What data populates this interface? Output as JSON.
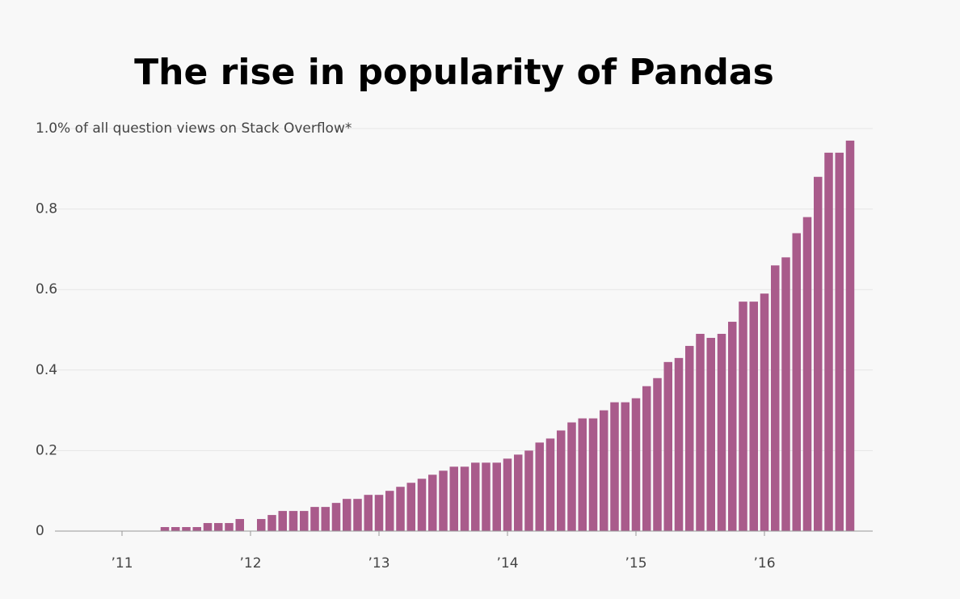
{
  "chart_data": {
    "type": "bar",
    "title": "The rise in popularity of Pandas",
    "categories": [
      "’11",
      null,
      null,
      null,
      null,
      null,
      null,
      null,
      null,
      null,
      null,
      null,
      "’12",
      null,
      null,
      null,
      null,
      null,
      null,
      null,
      null,
      null,
      null,
      null,
      "’13",
      null,
      null,
      null,
      null,
      null,
      null,
      null,
      null,
      null,
      null,
      null,
      "’14",
      null,
      null,
      null,
      null,
      null,
      null,
      null,
      null,
      null,
      null,
      null,
      "’15",
      null,
      null,
      null,
      null,
      null,
      null,
      null,
      null,
      null,
      null,
      null,
      "’16",
      null,
      null,
      null,
      null,
      null,
      null,
      null,
      null
    ],
    "values": [
      0,
      0,
      0,
      0,
      0.01,
      0.01,
      0.01,
      0.01,
      0.02,
      0.02,
      0.02,
      0.03,
      0,
      0.03,
      0.04,
      0.05,
      0.05,
      0.05,
      0.06,
      0.06,
      0.07,
      0.08,
      0.08,
      0.09,
      0.09,
      0.1,
      0.11,
      0.12,
      0.13,
      0.14,
      0.15,
      0.16,
      0.16,
      0.17,
      0.17,
      0.17,
      0.18,
      0.19,
      0.2,
      0.22,
      0.23,
      0.25,
      0.27,
      0.28,
      0.28,
      0.3,
      0.32,
      0.32,
      0.33,
      0.36,
      0.38,
      0.42,
      0.43,
      0.46,
      0.49,
      0.48,
      0.49,
      0.52,
      0.57,
      0.57,
      0.59,
      0.66,
      0.68,
      0.74,
      0.78,
      0.88,
      0.94,
      0.94,
      0.97
    ],
    "color": "#a95b8b",
    "ylim": [
      0,
      1
    ],
    "yticks": [
      0,
      0.2,
      0.4,
      0.6,
      0.8,
      {
        "value": 1,
        "label": "1.0% of all question views on Stack Overflow*"
      }
    ],
    "grid": true
  }
}
